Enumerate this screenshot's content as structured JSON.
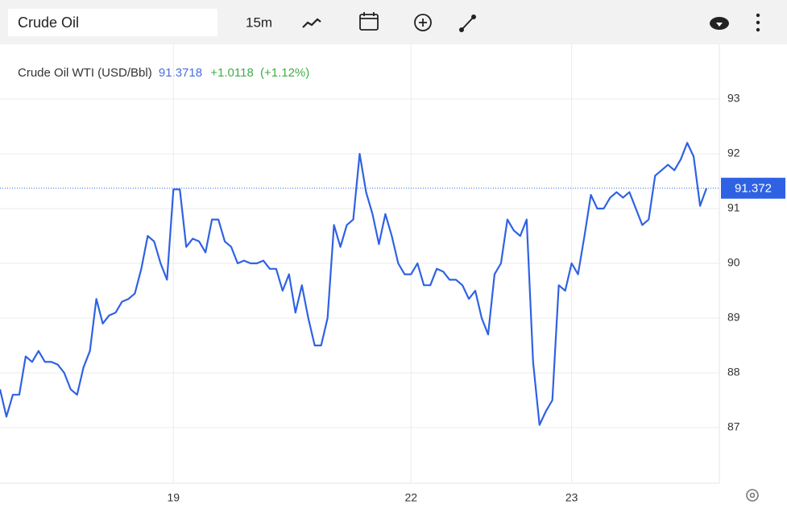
{
  "toolbar": {
    "search": "Crude Oil",
    "interval": "15m"
  },
  "chart_data": {
    "type": "line",
    "title": "Crude Oil WTI (USD/Bbl)",
    "price": {
      "value": 91.3718,
      "label": "91.3718"
    },
    "change": "+1.0118",
    "change_pct": "(+1.12%)",
    "last_price": {
      "value": 91.3718,
      "label": "91.372"
    },
    "series": [
      {
        "name": "Crude Oil WTI (USD/Bbl)",
        "color": "#2f62e3",
        "values": [
          87.7,
          87.2,
          87.6,
          87.6,
          88.3,
          88.2,
          88.4,
          88.2,
          88.2,
          88.15,
          88.0,
          87.7,
          87.6,
          88.1,
          88.4,
          89.35,
          88.9,
          89.05,
          89.1,
          89.3,
          89.35,
          89.45,
          89.9,
          90.5,
          90.4,
          90.0,
          89.7,
          91.35,
          91.35,
          90.3,
          90.45,
          90.4,
          90.2,
          90.8,
          90.8,
          90.4,
          90.3,
          90.0,
          90.05,
          90.0,
          90.0,
          90.05,
          89.9,
          89.9,
          89.5,
          89.8,
          89.1,
          89.6,
          89.0,
          88.5,
          88.5,
          89.0,
          90.7,
          90.3,
          90.7,
          90.8,
          92.0,
          91.3,
          90.9,
          90.35,
          90.9,
          90.5,
          90.0,
          89.8,
          89.8,
          90.0,
          89.6,
          89.6,
          89.9,
          89.85,
          89.7,
          89.7,
          89.6,
          89.35,
          89.5,
          89.0,
          88.7,
          89.8,
          90.0,
          90.8,
          90.6,
          90.5,
          90.8,
          88.2,
          87.05,
          87.3,
          87.5,
          89.6,
          89.5,
          90.0,
          89.8,
          90.5,
          91.25,
          91.0,
          91.0,
          91.2,
          91.3,
          91.2,
          91.3,
          91.0,
          90.7,
          90.8,
          91.6,
          91.7,
          91.8,
          91.7,
          91.9,
          92.2,
          91.95,
          91.05,
          91.3718
        ]
      }
    ],
    "xlim": [
      0,
      112
    ],
    "xticks": [
      {
        "value": 27,
        "label": "19"
      },
      {
        "value": 64,
        "label": "22"
      },
      {
        "value": 89,
        "label": "23"
      }
    ],
    "ylim": [
      86,
      94
    ],
    "yticks": [
      87,
      88,
      89,
      90,
      91,
      92,
      93
    ],
    "grid": true
  }
}
